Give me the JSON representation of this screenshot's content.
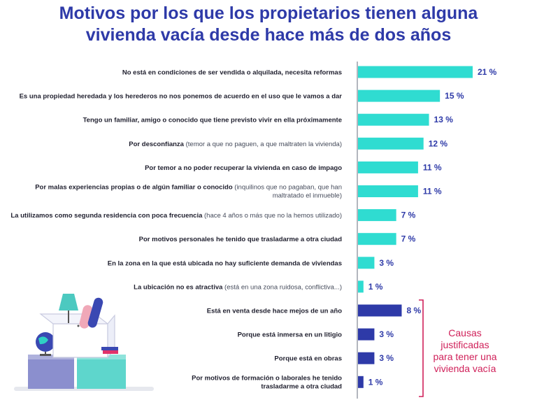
{
  "title": {
    "line1": "Motivos por los que los propietarios tienen alguna",
    "line2": "vivienda vacía desde hace más de dos años"
  },
  "colors": {
    "title": "#2e3aa8",
    "bar_turquoise": "#2fdcd1",
    "bar_navy": "#2e3aa8",
    "value_text": "#2e3aa8",
    "bracket": "#d0215a",
    "axis": "#9a9ea8"
  },
  "note": {
    "line1": "Causas",
    "line2": "justificadas",
    "line3": "para tener una",
    "line4": "vivienda vacía"
  },
  "chart_data": {
    "type": "bar",
    "orientation": "horizontal",
    "value_suffix": " %",
    "categories": [
      {
        "bold": "No está en condiciones de ser vendida o alquilada, necesita reformas",
        "light": ""
      },
      {
        "bold": "Es una propiedad heredada y los herederos no nos ponemos de acuerdo en el uso que le vamos a dar",
        "light": ""
      },
      {
        "bold": "Tengo un familiar, amigo o conocido que tiene previsto vivir en ella próximamente",
        "light": ""
      },
      {
        "bold": "Por desconfianza",
        "light": " (temor a que no paguen, a que maltraten la vivienda)"
      },
      {
        "bold": "Por temor a no poder recuperar la vivienda en caso de impago",
        "light": ""
      },
      {
        "bold": "Por malas experiencias propias o de algún familiar o conocido",
        "light": " (inquilinos que no pagaban, que han",
        "light2": "maltratado el inmueble)"
      },
      {
        "bold": "La utilizamos como segunda residencia con poca frecuencia",
        "light": " (hace 4 años o más que no la hemos utilizado)"
      },
      {
        "bold": "Por motivos personales he tenido que trasladarme a otra ciudad",
        "light": ""
      },
      {
        "bold": "En la zona en la que está ubicada no hay suficiente demanda de viviendas",
        "light": ""
      },
      {
        "bold": "La ubicación no es atractiva",
        "light": " (está en una zona ruidosa, conflictiva...)"
      },
      {
        "bold": "Está en venta desde hace mejos de un año",
        "light": ""
      },
      {
        "bold": "Porque está inmersa en un litigio",
        "light": ""
      },
      {
        "bold": "Porque está en obras",
        "light": ""
      },
      {
        "bold": "Por motivos de formación o laborales he tenido",
        "bold2": "trasladarme a otra ciudad",
        "light": ""
      }
    ],
    "values": [
      21,
      15,
      13,
      12,
      11,
      11,
      7,
      7,
      3,
      1,
      8,
      3,
      3,
      1
    ],
    "value_labels": [
      "21 %",
      "15 %",
      "13 %",
      "12 %",
      "11 %",
      "11 %",
      "7 %",
      "7 %",
      "3 %",
      "1 %",
      "8 %",
      "3 %",
      "3 %",
      "1 %"
    ],
    "groups": [
      {
        "name": "",
        "from": 0,
        "to": 9,
        "color": "#2fdcd1"
      },
      {
        "name": "Causas justificadas para tener una vivienda vacía",
        "from": 10,
        "to": 13,
        "color": "#2e3aa8"
      }
    ],
    "xlim": [
      0,
      21
    ]
  }
}
